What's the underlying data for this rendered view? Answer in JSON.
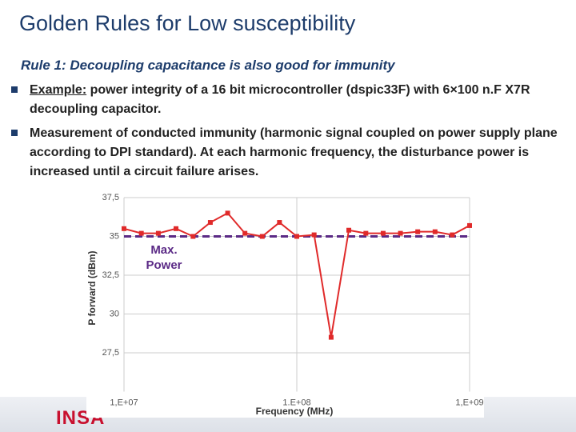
{
  "header": {
    "title": "Golden Rules for Low susceptibility"
  },
  "subtitle": "Rule 1: Decoupling capacitance is also good for immunity",
  "bullets": [
    {
      "lead": "Example:",
      "text": "power integrity of a 16 bit microcontroller (dspic33F) with 6×100 n.F X7R decoupling capacitor."
    },
    {
      "text": "Measurement of conducted immunity (harmonic signal coupled on power supply plane according to DPI standard). At each harmonic frequency, the disturbance power is increased until a circuit failure arises."
    }
  ],
  "footer": {
    "logo": "INSA"
  },
  "chart_data": {
    "type": "line",
    "x_label": "Frequency (MHz)",
    "y_label": "P forward (dBm)",
    "x": [
      10000000,
      12600000,
      15800000,
      20000000,
      25100000,
      31600000,
      39800000,
      50100000,
      63100000,
      79400000,
      100000000,
      126000000,
      158000000,
      200000000,
      251000000,
      316000000,
      398000000,
      501000000,
      631000000,
      794000000,
      1000000000
    ],
    "series": [
      {
        "color": "#e02a2a",
        "values": [
          35.5,
          35.2,
          35.2,
          35.5,
          35.0,
          35.9,
          36.5,
          35.2,
          35.0,
          35.9,
          35.0,
          35.1,
          28.5,
          35.4,
          35.2,
          35.2,
          35.2,
          35.3,
          35.3,
          35.1,
          35.7
        ]
      }
    ],
    "reference_line": {
      "value": 35,
      "label": "Max. Power",
      "color": "#5b2a86"
    },
    "xscale": "log",
    "xlim": [
      10000000,
      1000000000
    ],
    "xticks": [
      {
        "value": 10000000,
        "label": "1,E+07"
      },
      {
        "value": 100000000,
        "label": "1.E+08"
      },
      {
        "value": 1000000000,
        "label": "1,E+09"
      }
    ],
    "ylim": [
      25,
      37.5
    ],
    "yticks": [
      {
        "value": 27.5,
        "label": "27,5"
      },
      30,
      {
        "value": 32.5,
        "label": "32,5"
      },
      35,
      {
        "value": 37.5,
        "label": "37,5"
      }
    ],
    "grid": true
  }
}
